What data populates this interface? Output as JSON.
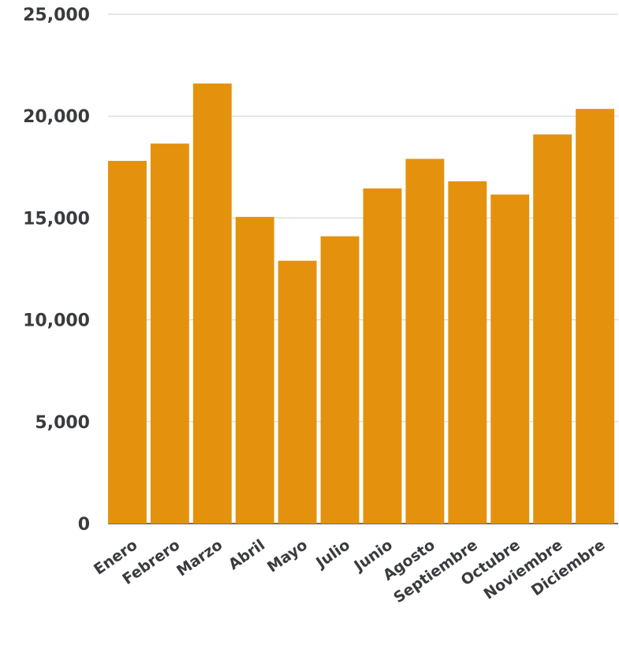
{
  "chart_data": {
    "type": "bar",
    "title": "",
    "xlabel": "",
    "ylabel": "",
    "categories": [
      "Enero",
      "Febrero",
      "Marzo",
      "Abril",
      "Mayo",
      "Julio",
      "Junio",
      "Agosto",
      "Septiembre",
      "Octubre",
      "Noviembre",
      "Diciembre"
    ],
    "values": [
      17800,
      18650,
      21600,
      15050,
      12900,
      14100,
      16450,
      17900,
      16800,
      16150,
      19100,
      20350
    ],
    "ylim": [
      0,
      25000
    ],
    "yticks": [
      0,
      5000,
      10000,
      15000,
      20000,
      25000
    ],
    "ytick_labels": [
      "0",
      "5,000",
      "10,000",
      "15,000",
      "20,000",
      "25,000"
    ],
    "grid": true,
    "legend": "none",
    "bar_color": "#e4920e"
  }
}
